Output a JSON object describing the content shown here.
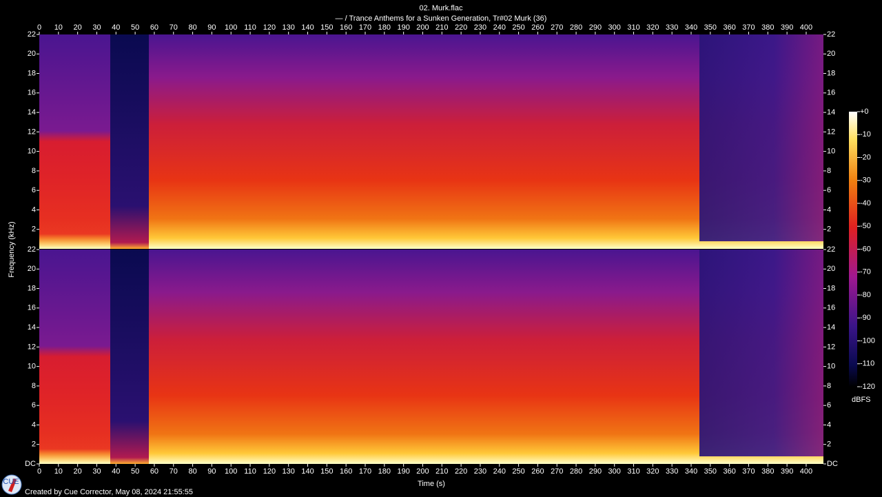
{
  "chart_data": {
    "type": "spectrogram",
    "title": "02. Murk.flac",
    "subtitle": "— / Trance Anthems for a Sunken Generation, Tr#02 Murk (36)",
    "xlabel": "Time (s)",
    "ylabel": "Frequency (kHz)",
    "xlim": [
      0,
      409
    ],
    "xticks": [
      0,
      10,
      20,
      30,
      40,
      50,
      60,
      70,
      80,
      90,
      100,
      110,
      120,
      130,
      140,
      150,
      160,
      170,
      180,
      190,
      200,
      210,
      220,
      230,
      240,
      250,
      260,
      270,
      280,
      290,
      300,
      310,
      320,
      330,
      340,
      350,
      360,
      370,
      380,
      390,
      400
    ],
    "ylim": [
      0,
      22
    ],
    "panels": [
      {
        "yticks": [
          2,
          4,
          6,
          8,
          10,
          12,
          14,
          16,
          18,
          20,
          22
        ]
      },
      {
        "yticks": [
          {
            "value": 0,
            "label": "DC"
          },
          2,
          4,
          6,
          8,
          10,
          12,
          14,
          16,
          18,
          20,
          22
        ]
      }
    ],
    "colorbar": {
      "label": "dBFS",
      "clim": [
        -120,
        0
      ],
      "ticks": [
        {
          "value": 0,
          "label": "+0"
        },
        -10,
        -20,
        -30,
        -40,
        -50,
        -60,
        -70,
        -80,
        -90,
        -100,
        -110,
        -120
      ]
    },
    "logo_text": "CUE",
    "footer": "Created by Cue Corrector, May 08, 2024 21:55:55"
  }
}
